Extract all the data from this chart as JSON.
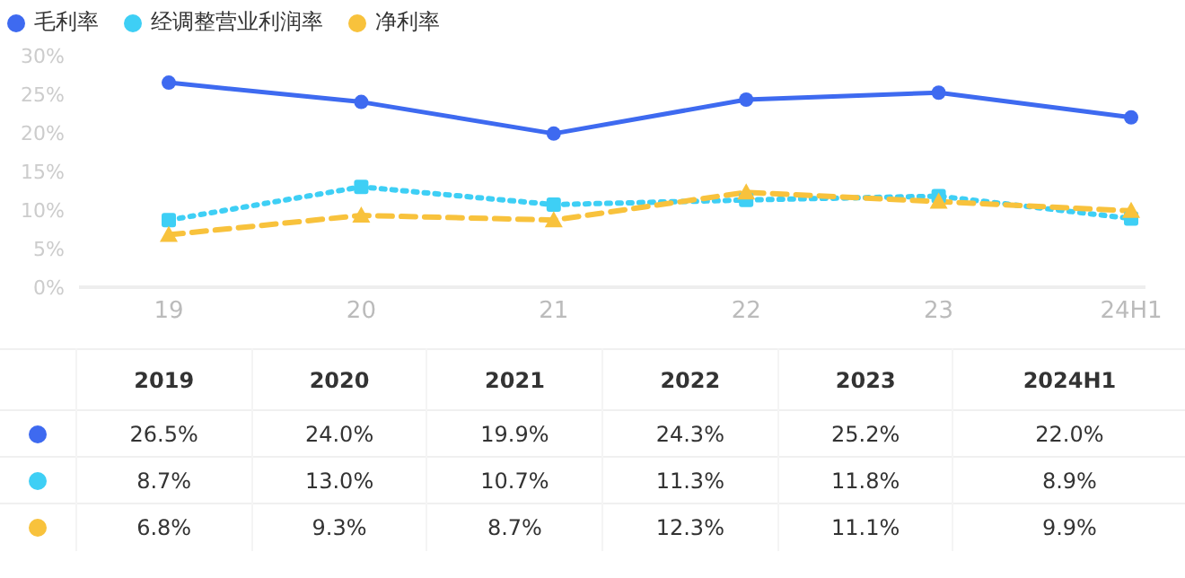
{
  "chart_data": {
    "type": "line",
    "categories": [
      "19",
      "20",
      "21",
      "22",
      "23",
      "24H1"
    ],
    "annotations": [
      "2019",
      "2020",
      "2021",
      "2022",
      "2023",
      "2024H1"
    ],
    "series": [
      {
        "name": "毛利率",
        "color": "#3e6af0",
        "marker": "circle",
        "line_style": "solid",
        "values": [
          26.5,
          24.0,
          19.9,
          24.3,
          25.2,
          22.0
        ],
        "value_labels": [
          "26.5%",
          "24.0%",
          "19.9%",
          "24.3%",
          "25.2%",
          "22.0%"
        ]
      },
      {
        "name": "经调整营业利润率",
        "color": "#3ecff5",
        "marker": "square",
        "line_style": "dotted",
        "values": [
          8.7,
          13.0,
          10.7,
          11.3,
          11.8,
          8.9
        ],
        "value_labels": [
          "8.7%",
          "13.0%",
          "10.7%",
          "11.3%",
          "11.8%",
          "8.9%"
        ]
      },
      {
        "name": "净利率",
        "color": "#f8c23c",
        "marker": "triangle",
        "line_style": "dashed",
        "values": [
          6.8,
          9.3,
          8.7,
          12.3,
          11.1,
          9.9
        ],
        "value_labels": [
          "6.8%",
          "9.3%",
          "8.7%",
          "12.3%",
          "11.1%",
          "9.9%"
        ]
      }
    ],
    "ylim": [
      0,
      30
    ],
    "yticks": [
      {
        "value": 0,
        "label": "0%"
      },
      {
        "value": 5,
        "label": "5%"
      },
      {
        "value": 10,
        "label": "10%"
      },
      {
        "value": 15,
        "label": "15%"
      },
      {
        "value": 20,
        "label": "20%"
      },
      {
        "value": 25,
        "label": "25%"
      },
      {
        "value": 30,
        "label": "30%"
      }
    ],
    "grid": false,
    "legend": "top left"
  }
}
